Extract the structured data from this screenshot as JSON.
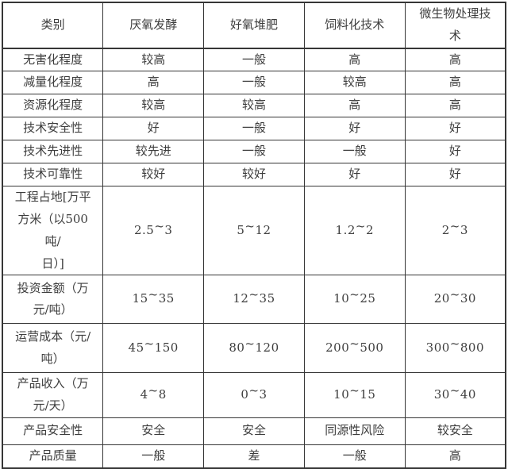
{
  "colors": {
    "text": "#3d3d3d",
    "border": "#363636",
    "background": "#ffffff"
  },
  "chart_data": {
    "type": "table",
    "title": "",
    "columns": [
      "类别",
      "厌氧发酵",
      "好氧堆肥",
      "饲料化技术",
      "微生物处理技术"
    ],
    "rows": [
      {
        "label": "无害化程度",
        "values": [
          "较高",
          "一般",
          "高",
          "高"
        ]
      },
      {
        "label": "减量化程度",
        "values": [
          "高",
          "一般",
          "较高",
          "高"
        ]
      },
      {
        "label": "资源化程度",
        "values": [
          "较高",
          "较高",
          "高",
          "高"
        ]
      },
      {
        "label": "技术安全性",
        "values": [
          "好",
          "一般",
          "好",
          "好"
        ]
      },
      {
        "label": "技术先进性",
        "values": [
          "较先进",
          "一般",
          "一般",
          "好"
        ]
      },
      {
        "label": "技术可靠性",
        "values": [
          "较好",
          "较好",
          "好",
          "好"
        ]
      },
      {
        "label": "工程占地[万平\n方米（以500吨/\n日）]",
        "values": [
          "2.5~3",
          "5~12",
          "1.2~2",
          "2~3"
        ]
      },
      {
        "label": "投资金额（万\n元/吨）",
        "values": [
          "15~35",
          "12~35",
          "10~25",
          "20~30"
        ]
      },
      {
        "label": "运营成本（元/\n吨）",
        "values": [
          "45~150",
          "80~120",
          "200~500",
          "300~800"
        ]
      },
      {
        "label": "产品收入（万\n元/天）",
        "values": [
          "4~8",
          "0~3",
          "10~15",
          "30~40"
        ]
      },
      {
        "label": "产品安全性",
        "values": [
          "安全",
          "安全",
          "同源性风险",
          "较安全"
        ]
      },
      {
        "label": "产品质量",
        "values": [
          "一般",
          "差",
          "一般",
          "高"
        ]
      }
    ]
  }
}
